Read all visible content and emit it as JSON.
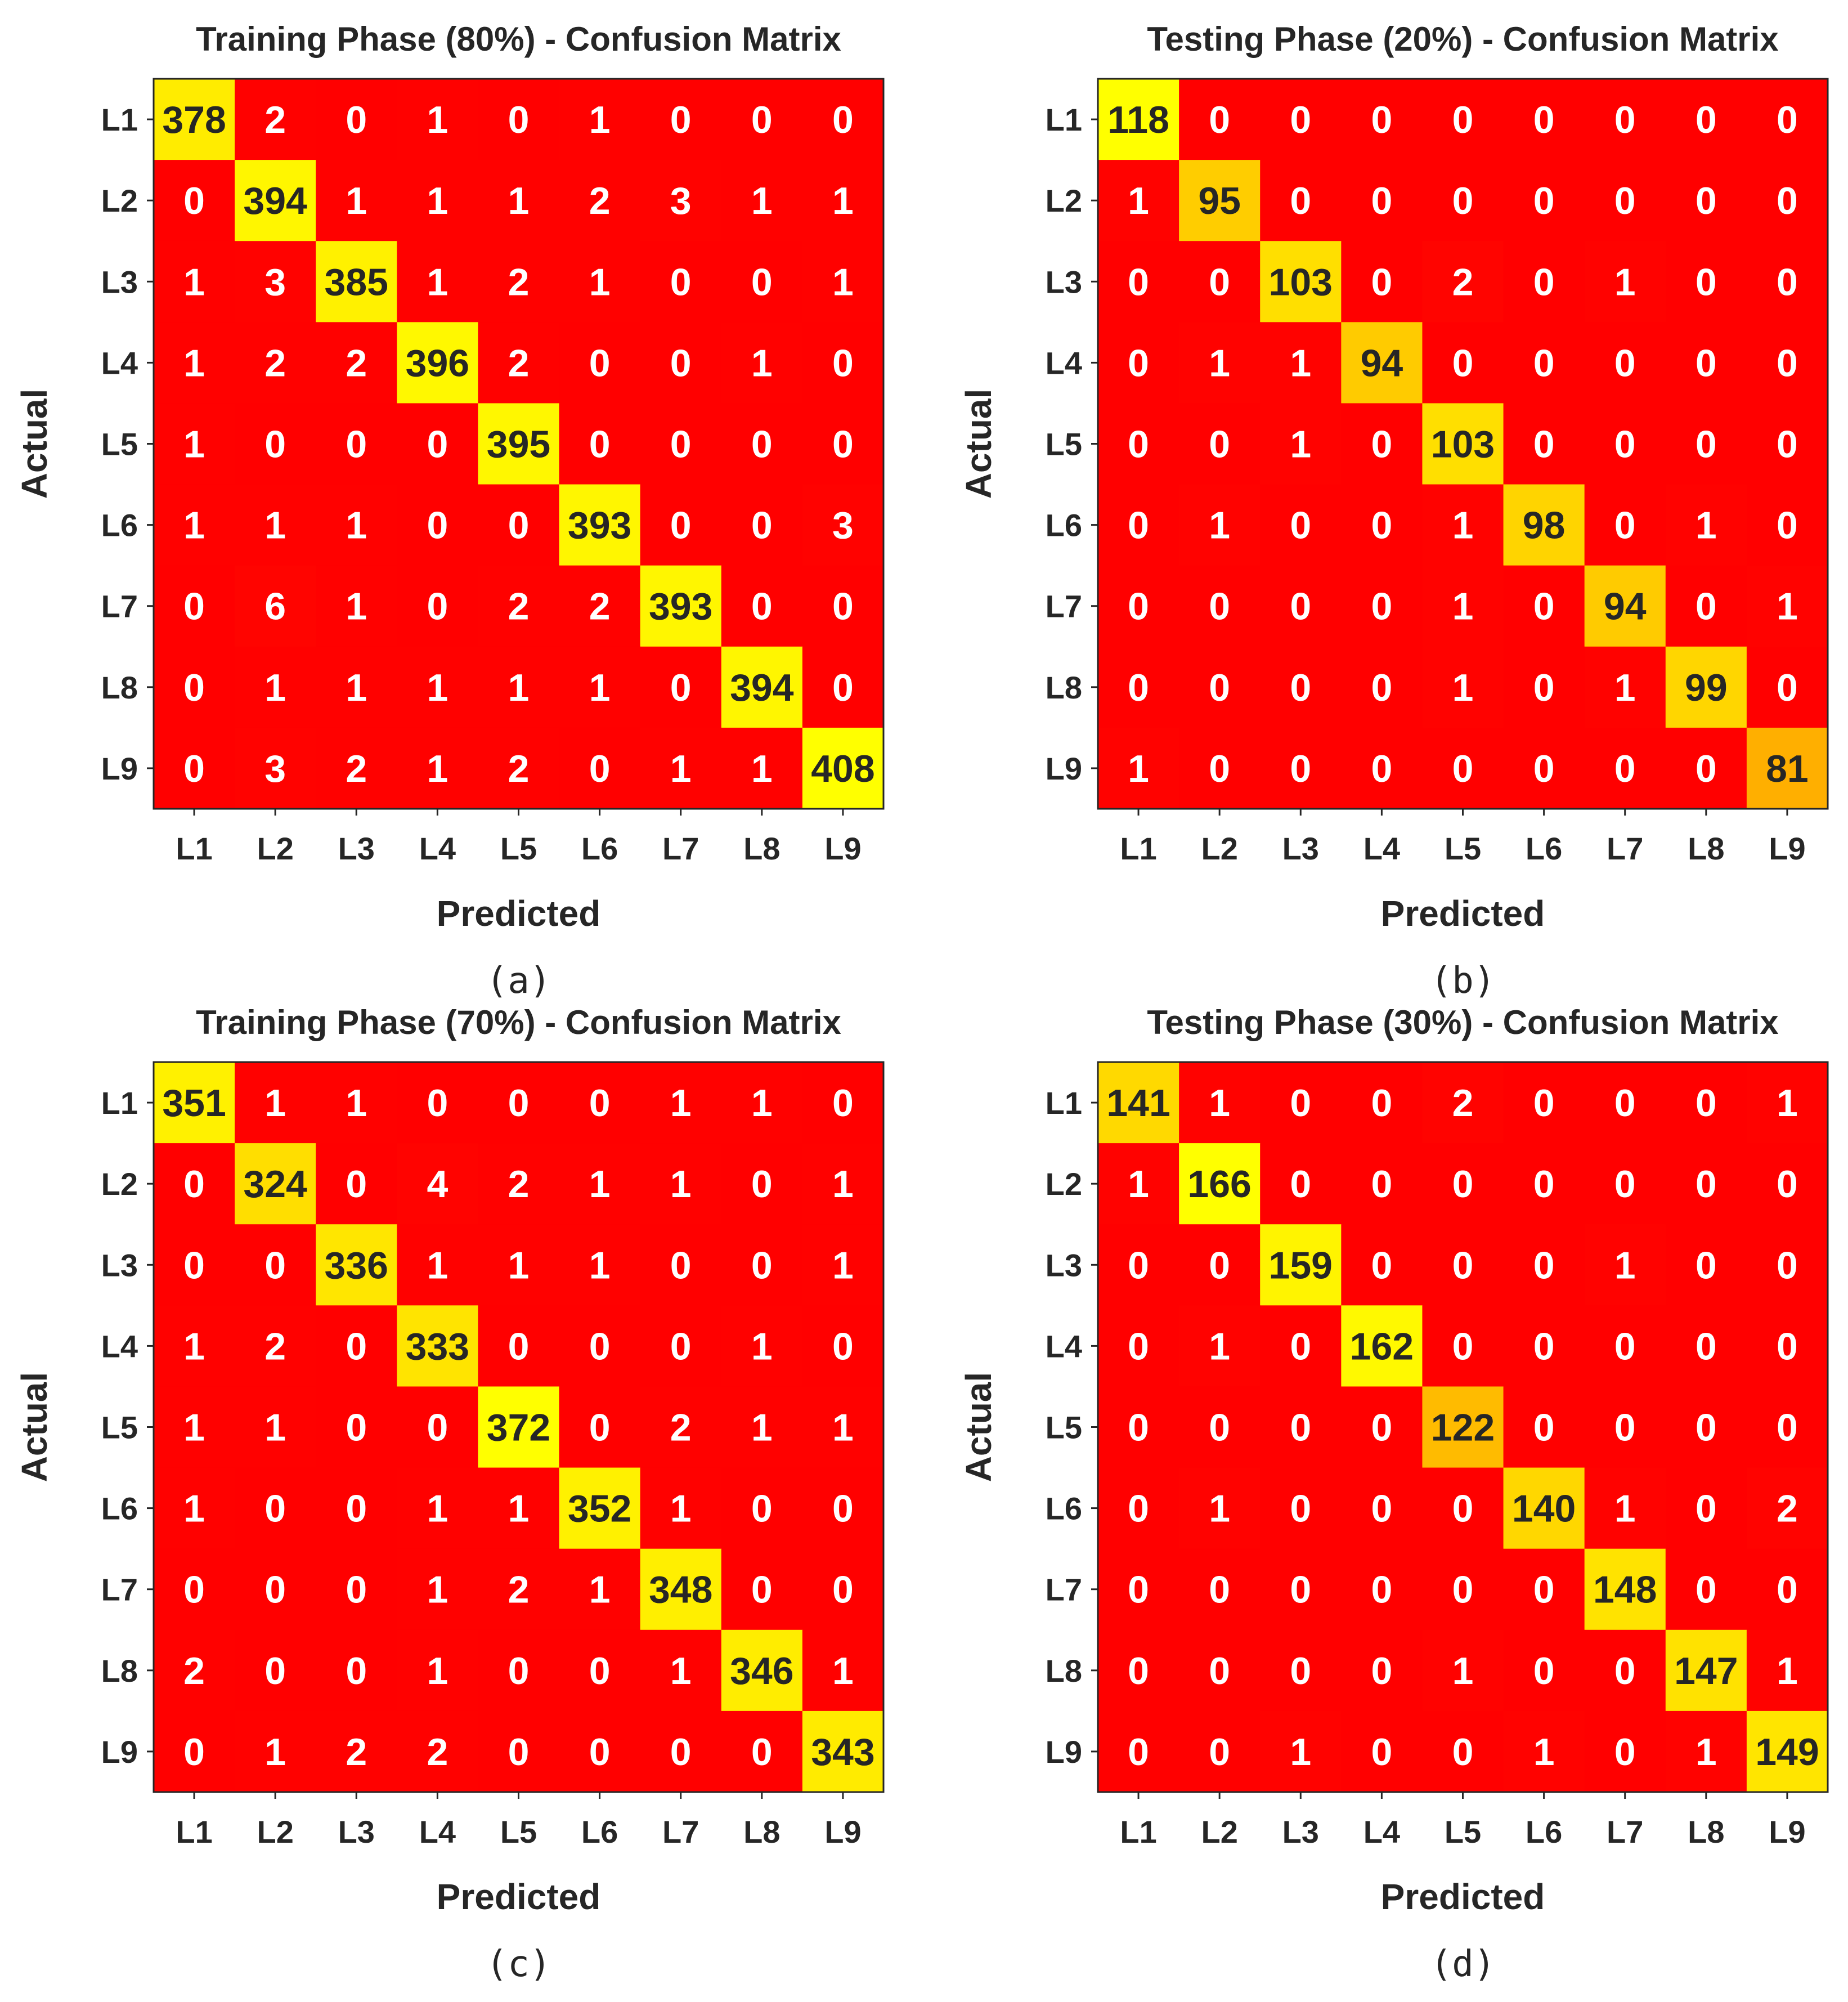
{
  "chart_data": [
    {
      "type": "heatmap",
      "panel_label": "(a)",
      "title": "Training Phase (80%) - Confusion Matrix",
      "xlabel": "Predicted",
      "ylabel": "Actual",
      "x_categories": [
        "L1",
        "L2",
        "L3",
        "L4",
        "L5",
        "L6",
        "L7",
        "L8",
        "L9"
      ],
      "y_categories": [
        "L1",
        "L2",
        "L3",
        "L4",
        "L5",
        "L6",
        "L7",
        "L8",
        "L9"
      ],
      "values": [
        [
          378,
          2,
          0,
          1,
          0,
          1,
          0,
          0,
          0
        ],
        [
          0,
          394,
          1,
          1,
          1,
          2,
          3,
          1,
          1
        ],
        [
          1,
          3,
          385,
          1,
          2,
          1,
          0,
          0,
          1
        ],
        [
          1,
          2,
          2,
          396,
          2,
          0,
          0,
          1,
          0
        ],
        [
          1,
          0,
          0,
          0,
          395,
          0,
          0,
          0,
          0
        ],
        [
          1,
          1,
          1,
          0,
          0,
          393,
          0,
          0,
          3
        ],
        [
          0,
          6,
          1,
          0,
          2,
          2,
          393,
          0,
          0
        ],
        [
          0,
          1,
          1,
          1,
          1,
          1,
          0,
          394,
          0
        ],
        [
          0,
          3,
          2,
          1,
          2,
          0,
          1,
          1,
          408
        ]
      ],
      "colormap": "autumn"
    },
    {
      "type": "heatmap",
      "panel_label": "(b)",
      "title": "Testing Phase (20%) - Confusion Matrix",
      "xlabel": "Predicted",
      "ylabel": "Actual",
      "x_categories": [
        "L1",
        "L2",
        "L3",
        "L4",
        "L5",
        "L6",
        "L7",
        "L8",
        "L9"
      ],
      "y_categories": [
        "L1",
        "L2",
        "L3",
        "L4",
        "L5",
        "L6",
        "L7",
        "L8",
        "L9"
      ],
      "values": [
        [
          118,
          0,
          0,
          0,
          0,
          0,
          0,
          0,
          0
        ],
        [
          1,
          95,
          0,
          0,
          0,
          0,
          0,
          0,
          0
        ],
        [
          0,
          0,
          103,
          0,
          2,
          0,
          1,
          0,
          0
        ],
        [
          0,
          1,
          1,
          94,
          0,
          0,
          0,
          0,
          0
        ],
        [
          0,
          0,
          1,
          0,
          103,
          0,
          0,
          0,
          0
        ],
        [
          0,
          1,
          0,
          0,
          1,
          98,
          0,
          1,
          0
        ],
        [
          0,
          0,
          0,
          0,
          1,
          0,
          94,
          0,
          1
        ],
        [
          0,
          0,
          0,
          0,
          1,
          0,
          1,
          99,
          0
        ],
        [
          1,
          0,
          0,
          0,
          0,
          0,
          0,
          0,
          81
        ]
      ],
      "colormap": "autumn"
    },
    {
      "type": "heatmap",
      "panel_label": "(c)",
      "title": "Training Phase (70%) - Confusion Matrix",
      "xlabel": "Predicted",
      "ylabel": "Actual",
      "x_categories": [
        "L1",
        "L2",
        "L3",
        "L4",
        "L5",
        "L6",
        "L7",
        "L8",
        "L9"
      ],
      "y_categories": [
        "L1",
        "L2",
        "L3",
        "L4",
        "L5",
        "L6",
        "L7",
        "L8",
        "L9"
      ],
      "values": [
        [
          351,
          1,
          1,
          0,
          0,
          0,
          1,
          1,
          0
        ],
        [
          0,
          324,
          0,
          4,
          2,
          1,
          1,
          0,
          1
        ],
        [
          0,
          0,
          336,
          1,
          1,
          1,
          0,
          0,
          1
        ],
        [
          1,
          2,
          0,
          333,
          0,
          0,
          0,
          1,
          0
        ],
        [
          1,
          1,
          0,
          0,
          372,
          0,
          2,
          1,
          1
        ],
        [
          1,
          0,
          0,
          1,
          1,
          352,
          1,
          0,
          0
        ],
        [
          0,
          0,
          0,
          1,
          2,
          1,
          348,
          0,
          0
        ],
        [
          2,
          0,
          0,
          1,
          0,
          0,
          1,
          346,
          1
        ],
        [
          0,
          1,
          2,
          2,
          0,
          0,
          0,
          0,
          343
        ]
      ],
      "colormap": "autumn"
    },
    {
      "type": "heatmap",
      "panel_label": "(d)",
      "title": "Testing Phase (30%) - Confusion Matrix",
      "xlabel": "Predicted",
      "ylabel": "Actual",
      "x_categories": [
        "L1",
        "L2",
        "L3",
        "L4",
        "L5",
        "L6",
        "L7",
        "L8",
        "L9"
      ],
      "y_categories": [
        "L1",
        "L2",
        "L3",
        "L4",
        "L5",
        "L6",
        "L7",
        "L8",
        "L9"
      ],
      "values": [
        [
          141,
          1,
          0,
          0,
          2,
          0,
          0,
          0,
          1
        ],
        [
          1,
          166,
          0,
          0,
          0,
          0,
          0,
          0,
          0
        ],
        [
          0,
          0,
          159,
          0,
          0,
          0,
          1,
          0,
          0
        ],
        [
          0,
          1,
          0,
          162,
          0,
          0,
          0,
          0,
          0
        ],
        [
          0,
          0,
          0,
          0,
          122,
          0,
          0,
          0,
          0
        ],
        [
          0,
          1,
          0,
          0,
          0,
          140,
          1,
          0,
          2
        ],
        [
          0,
          0,
          0,
          0,
          0,
          0,
          148,
          0,
          0
        ],
        [
          0,
          0,
          0,
          0,
          1,
          0,
          0,
          147,
          1
        ],
        [
          0,
          0,
          1,
          0,
          0,
          1,
          0,
          1,
          149
        ]
      ],
      "colormap": "autumn"
    }
  ]
}
